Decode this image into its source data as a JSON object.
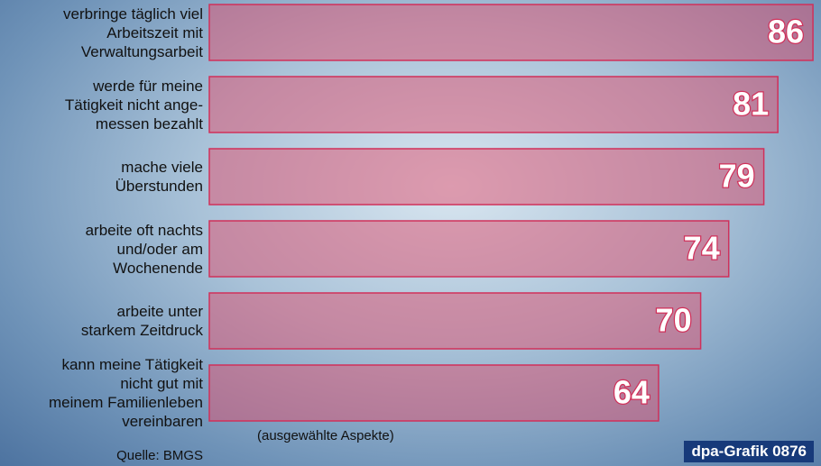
{
  "chart_data": {
    "type": "bar",
    "orientation": "horizontal",
    "categories": [
      "verbringe täglich viel\nArbeitszeit mit\nVerwaltungsarbeit",
      "werde für meine\nTätigkeit nicht ange-\nmessen bezahlt",
      "mache viele\nÜberstunden",
      "arbeite oft nachts\nund/oder am\nWochenende",
      "arbeite unter\nstarkem Zeitdruck",
      "kann meine Tätigkeit\nnicht gut mit\nmeinem Familienleben\nvereinbaren"
    ],
    "values": [
      86,
      81,
      79,
      74,
      70,
      64
    ],
    "xlim": [
      0,
      100
    ],
    "color": "#e0506e",
    "note": "(ausgewählte Aspekte)",
    "source": "Quelle: BMGS",
    "credit": "dpa-Grafik 0876"
  }
}
